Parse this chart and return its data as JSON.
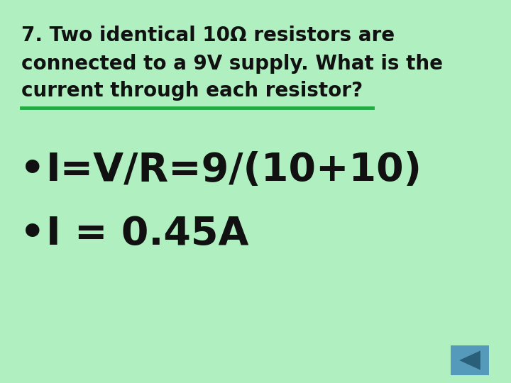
{
  "background_color": "#b0f0c0",
  "title_text_line1": "7. Two identical 10Ω resistors are",
  "title_text_line2": "connected to a 9V supply. What is the",
  "title_text_line3": "current through each resistor?",
  "divider_color": "#22aa44",
  "bullet1": "I=V/R=9/(10+10)",
  "bullet2": "I = 0.45A",
  "text_color": "#111111",
  "header_fontsize": 20,
  "bullet_fontsize": 40,
  "nav_button_color": "#5599bb",
  "nav_arrow_color": "#2a5f7a"
}
